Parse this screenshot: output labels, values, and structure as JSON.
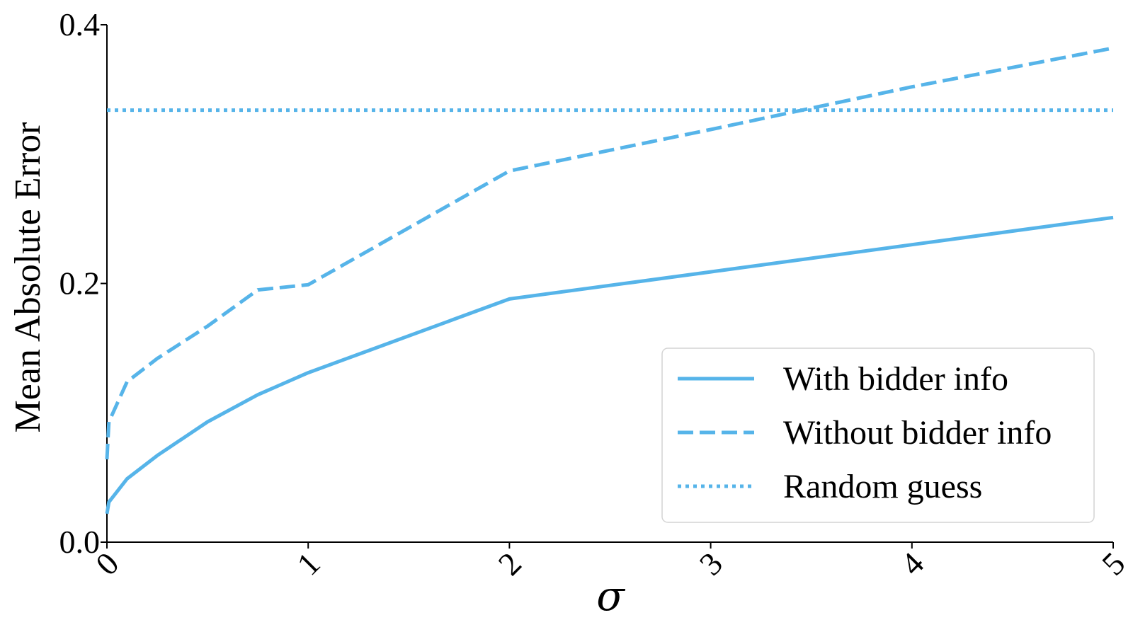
{
  "chart_data": {
    "type": "line",
    "xlabel": "σ",
    "ylabel": "Mean Absolute Error",
    "xlim": [
      0,
      5
    ],
    "ylim": [
      0,
      0.4
    ],
    "xticks": [
      0,
      1,
      2,
      3,
      4,
      5
    ],
    "xtick_labels": [
      "0",
      "1",
      "2",
      "3",
      "4",
      "5"
    ],
    "yticks": [
      0.0,
      0.2,
      0.4
    ],
    "ytick_labels": [
      "0.0",
      "0.2",
      "0.4"
    ],
    "grid": false,
    "legend_position": "lower-right",
    "series": [
      {
        "name": "With bidder info",
        "style": "solid",
        "color": "#56B4E9",
        "x": [
          0,
          0.01,
          0.1,
          0.25,
          0.5,
          0.75,
          1,
          2,
          3,
          4,
          5
        ],
        "y": [
          0.022,
          0.031,
          0.049,
          0.067,
          0.093,
          0.114,
          0.131,
          0.188,
          0.209,
          0.23,
          0.251
        ]
      },
      {
        "name": "Without bidder info",
        "style": "dashed",
        "color": "#56B4E9",
        "x": [
          0,
          0.01,
          0.1,
          0.25,
          0.5,
          0.75,
          1,
          2,
          3,
          4,
          5
        ],
        "y": [
          0.064,
          0.093,
          0.124,
          0.142,
          0.167,
          0.195,
          0.199,
          0.287,
          0.319,
          0.352,
          0.382
        ]
      },
      {
        "name": "Random guess",
        "style": "dotted",
        "color": "#56B4E9",
        "x": [
          0,
          5
        ],
        "y": [
          0.334,
          0.334
        ]
      }
    ]
  }
}
